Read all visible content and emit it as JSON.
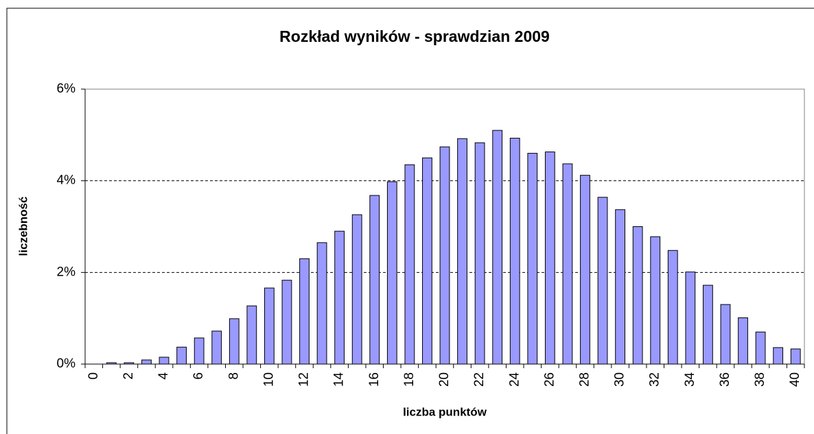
{
  "chart_data": {
    "type": "bar",
    "title": "Rozkład wyników - sprawdzian 2009",
    "x_label": "liczba punktów",
    "y_label": "liczebność",
    "categories": [
      "0",
      null,
      "2",
      null,
      "4",
      null,
      "6",
      null,
      "8",
      null,
      "10",
      null,
      "12",
      null,
      "14",
      null,
      "16",
      null,
      "18",
      null,
      "20",
      null,
      "22",
      null,
      "24",
      null,
      "26",
      null,
      "28",
      null,
      "30",
      null,
      "32",
      null,
      "34",
      null,
      "36",
      null,
      "38",
      null,
      "40"
    ],
    "values": [
      0,
      0.03,
      0.03,
      0.09,
      0.15,
      0.37,
      0.57,
      0.72,
      0.99,
      1.27,
      1.66,
      1.83,
      2.3,
      2.65,
      2.9,
      3.26,
      3.68,
      3.98,
      4.35,
      4.5,
      4.74,
      4.92,
      4.83,
      5.1,
      4.93,
      4.6,
      4.63,
      4.37,
      4.12,
      3.64,
      3.37,
      3.0,
      2.78,
      2.48,
      2.01,
      1.72,
      1.3,
      1.01,
      0.7,
      0.36,
      0.33
    ],
    "color": "#9999ff",
    "ylim": [
      0,
      6
    ],
    "yticks": [
      {
        "value": 0,
        "label": "0%"
      },
      {
        "value": 2,
        "label": "2%"
      },
      {
        "value": 4,
        "label": "4%"
      },
      {
        "value": 6,
        "label": "6%"
      }
    ],
    "grid": true
  }
}
